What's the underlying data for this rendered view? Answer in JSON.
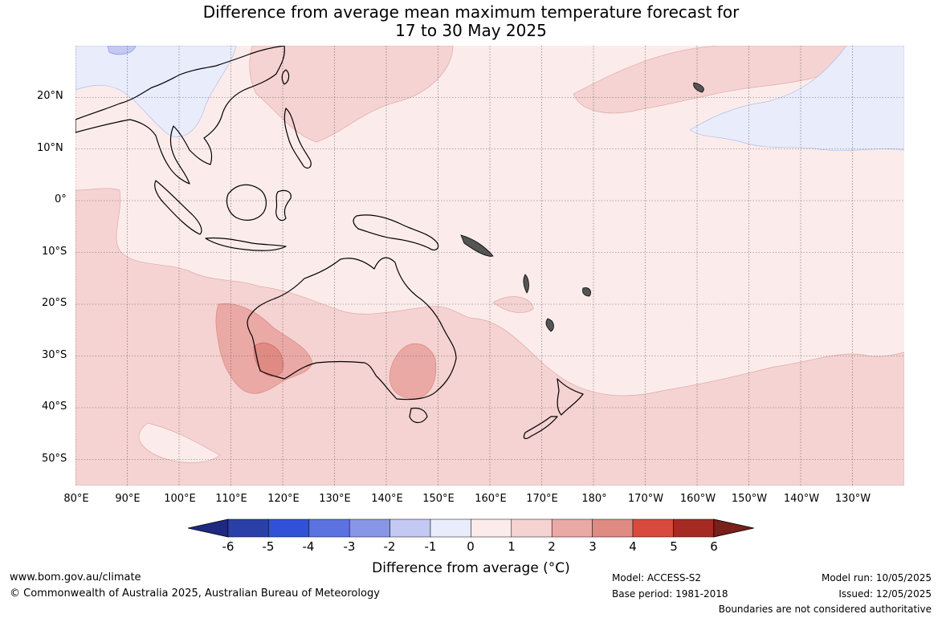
{
  "title_line1": "Difference from average mean maximum temperature forecast for",
  "title_line2": "17 to 30 May 2025",
  "lat_labels": [
    "20°N",
    "10°N",
    "0°",
    "10°S",
    "20°S",
    "30°S",
    "40°S",
    "50°S"
  ],
  "lon_labels": [
    "80°E",
    "90°E",
    "100°E",
    "110°E",
    "120°E",
    "130°E",
    "140°E",
    "150°E",
    "160°E",
    "170°E",
    "180°",
    "170°W",
    "160°W",
    "150°W",
    "140°W",
    "130°W"
  ],
  "colorbar": {
    "ticks": [
      "-6",
      "-5",
      "-4",
      "-3",
      "-2",
      "-1",
      "0",
      "1",
      "2",
      "3",
      "4",
      "5",
      "6"
    ],
    "colors": [
      "#1e2a80",
      "#2b3fa8",
      "#3152d8",
      "#5b72e0",
      "#8796e6",
      "#c3c9f2",
      "#e9ecfb",
      "#fbeceb",
      "#f5d3d2",
      "#eaa9a5",
      "#e08a84",
      "#d84a3e",
      "#a52a22",
      "#7a1f1a"
    ],
    "label": "Difference from average (°C)"
  },
  "footer": {
    "site": "www.bom.gov.au/climate",
    "copyright": "© Commonwealth of Australia 2025, Australian Bureau of Meteorology",
    "model": "Model: ACCESS-S2",
    "base_period": "Base period: 1981-2018",
    "model_run": "Model run: 10/05/2025",
    "issued": "Issued: 12/05/2025",
    "disclaimer": "Boundaries are not considered authoritative"
  }
}
